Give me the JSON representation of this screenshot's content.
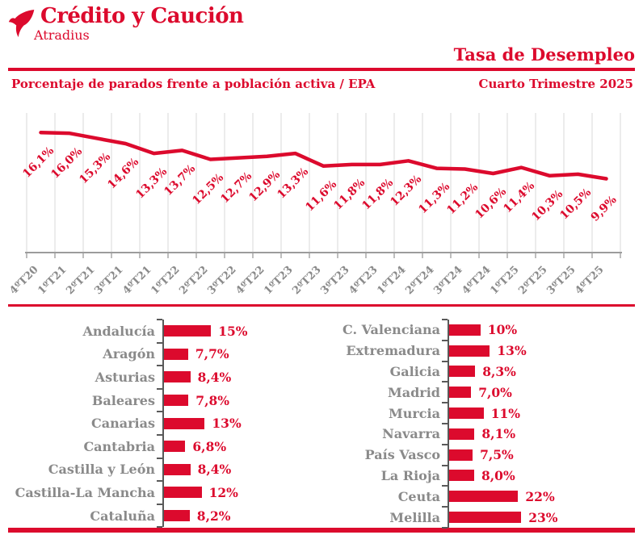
{
  "header": {
    "brand": "Crédito y Caución",
    "brand_sub": "Atradius",
    "title": "Tasa de Desempleo",
    "subtitle_left": "Porcentaje de parados frente a población activa / EPA",
    "subtitle_right": "Cuarto Trimestre 2025"
  },
  "colors": {
    "red": "#DC0A2D",
    "gray_text": "#8A8A8A",
    "gridline": "#D9D9D9",
    "axis": "#9C9C9C",
    "bar_axis": "#595959"
  },
  "chart_data": [
    {
      "type": "line",
      "title": "Tasa de Desempleo - Porcentaje de parados frente a población activa / EPA",
      "x": [
        "4ºT20",
        "1ºT21",
        "2ºT21",
        "3ºT21",
        "4ºT21",
        "1ºT22",
        "2ºT22",
        "3ºT22",
        "4ºT22",
        "1ºT23",
        "2ºT23",
        "3ºT23",
        "4ºT23",
        "1ºT24",
        "2ºT24",
        "3ºT24",
        "4ºT24",
        "1ºT25",
        "2ºT25",
        "3ºT25",
        "4ºT25"
      ],
      "values": [
        16.1,
        16.0,
        15.3,
        14.6,
        13.3,
        13.7,
        12.5,
        12.7,
        12.9,
        13.3,
        11.6,
        11.8,
        11.8,
        12.3,
        11.3,
        11.2,
        10.6,
        11.4,
        10.3,
        10.5,
        9.9
      ],
      "labels": [
        "16,1%",
        "16,0%",
        "15,3%",
        "14,6%",
        "13,3%",
        "13,7%",
        "12,5%",
        "12,7%",
        "12,9%",
        "13,3%",
        "11,6%",
        "11,8%",
        "11,8%",
        "12,3%",
        "11,3%",
        "11,2%",
        "10,6%",
        "11,4%",
        "10,3%",
        "10,5%",
        "9,9%"
      ],
      "ylim": [
        0,
        18.5
      ],
      "grid": "vertical-only",
      "legend": "none"
    },
    {
      "type": "bar",
      "orientation": "horizontal",
      "categories": [
        "Andalucía",
        "Aragón",
        "Asturias",
        "Baleares",
        "Canarias",
        "Cantabria",
        "Castilla y León",
        "Castilla-La Mancha",
        "Cataluña"
      ],
      "values": [
        15,
        7.7,
        8.4,
        7.8,
        13,
        6.8,
        8.4,
        12,
        8.2
      ],
      "labels": [
        "15%",
        "7,7%",
        "8,4%",
        "7,8%",
        "13%",
        "6,8%",
        "8,4%",
        "12%",
        "8,2%"
      ],
      "xlim": [
        0,
        25
      ]
    },
    {
      "type": "bar",
      "orientation": "horizontal",
      "categories": [
        "C. Valenciana",
        "Extremadura",
        "Galicia",
        "Madrid",
        "Murcia",
        "Navarra",
        "País Vasco",
        "La Rioja",
        "Ceuta",
        "Melilla"
      ],
      "values": [
        10,
        13,
        8.3,
        7.0,
        11,
        8.1,
        7.5,
        8.0,
        22,
        23
      ],
      "labels": [
        "10%",
        "13%",
        "8,3%",
        "7,0%",
        "11%",
        "8,1%",
        "7,5%",
        "8,0%",
        "22%",
        "23%"
      ],
      "xlim": [
        0,
        25
      ]
    }
  ]
}
